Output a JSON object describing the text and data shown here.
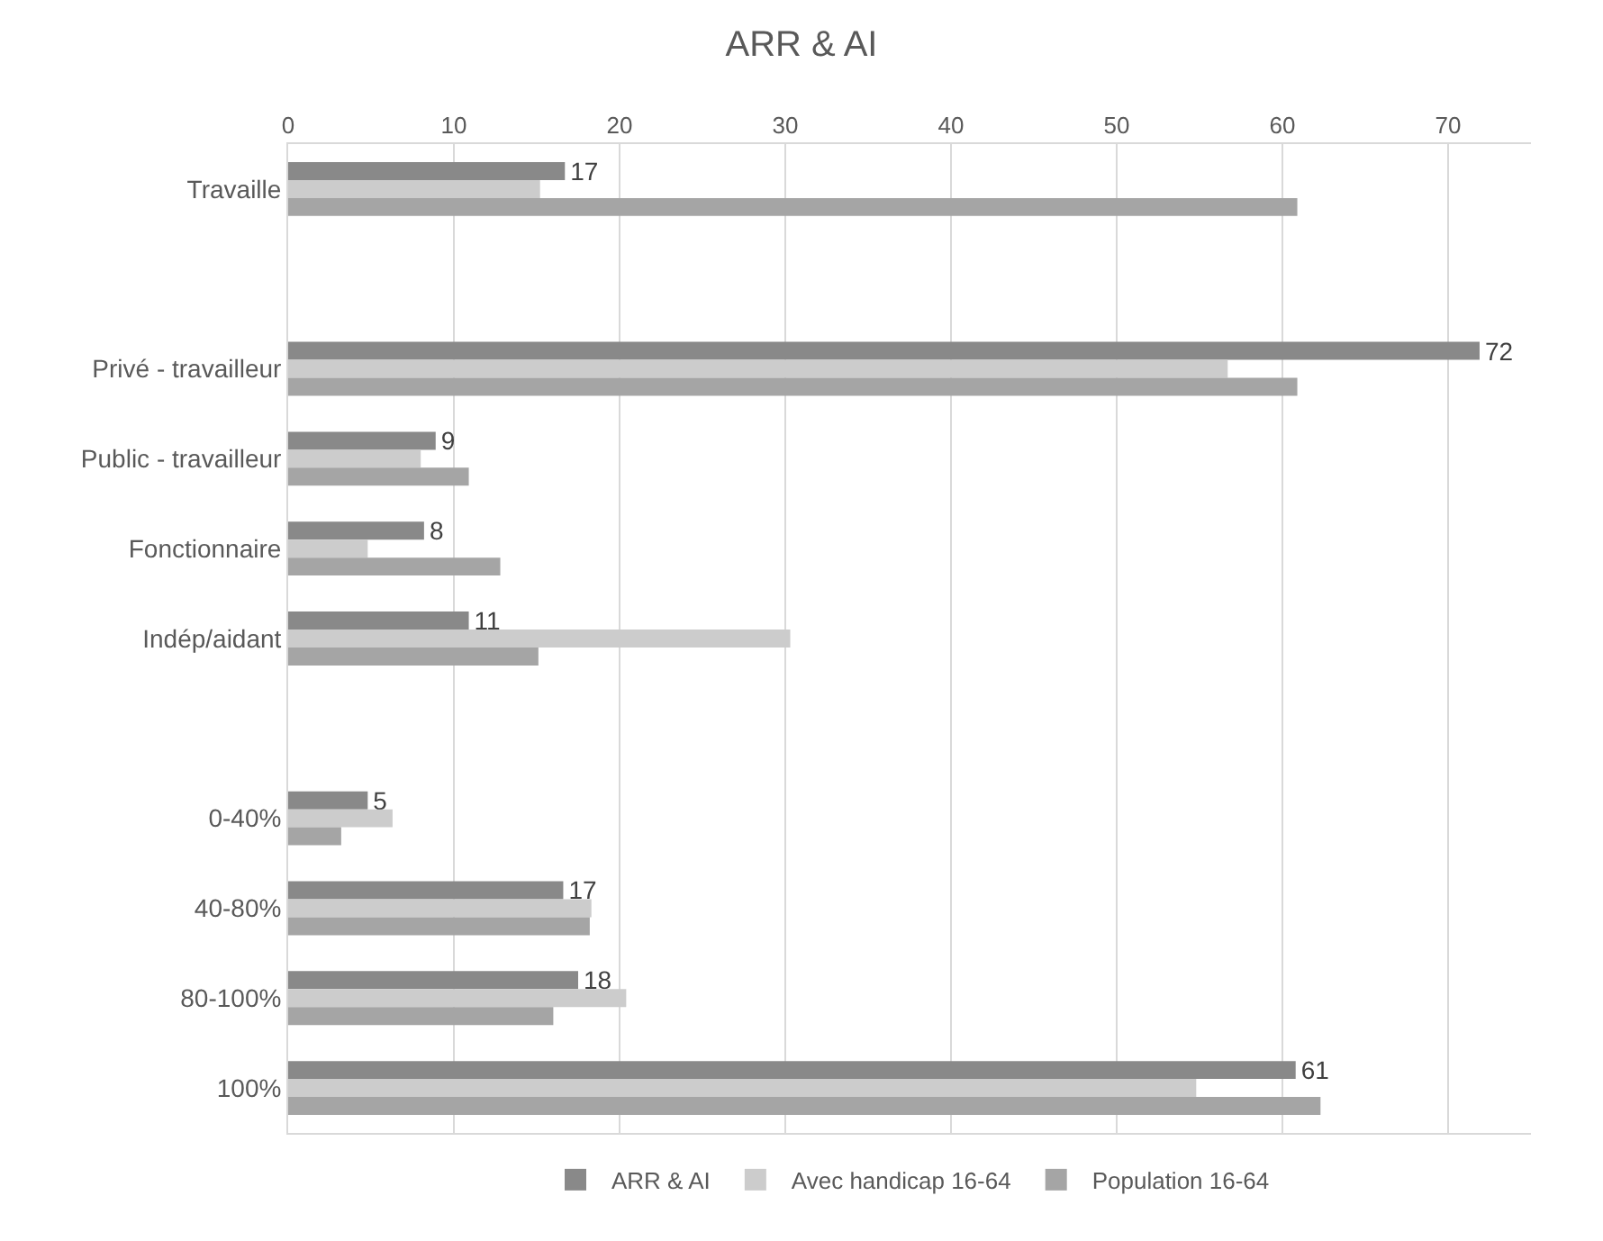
{
  "chart_data": {
    "type": "bar",
    "orientation": "horizontal",
    "title": "ARR & AI",
    "categories": [
      "Travaille",
      null,
      "Privé - travailleur",
      "Public - travailleur",
      "Fonctionnaire",
      "Indép/aidant",
      null,
      "0-40%",
      "40-80%",
      "80-100%",
      "100%"
    ],
    "series": [
      {
        "name": "ARR & AI",
        "color": "#898989",
        "values": [
          16.7,
          null,
          71.9,
          8.9,
          8.2,
          10.9,
          null,
          4.8,
          16.6,
          17.5,
          60.8
        ],
        "value_labels": [
          "17",
          null,
          "72",
          "9",
          "8",
          "11",
          null,
          "5",
          "17",
          "18",
          "61"
        ]
      },
      {
        "name": "Avec handicap 16-64",
        "color": "#cccccc",
        "values": [
          15.2,
          null,
          56.7,
          8.0,
          4.8,
          30.3,
          null,
          6.3,
          18.3,
          20.4,
          54.8
        ]
      },
      {
        "name": "Population 16-64",
        "color": "#a5a5a5",
        "values": [
          60.9,
          null,
          60.9,
          10.9,
          12.8,
          15.1,
          null,
          3.2,
          18.2,
          16.0,
          62.3
        ]
      }
    ],
    "xlim": [
      0,
      75
    ],
    "xticks": [
      0,
      10,
      20,
      30,
      40,
      50,
      60,
      70
    ],
    "grid": "x",
    "legend": "bottom"
  }
}
